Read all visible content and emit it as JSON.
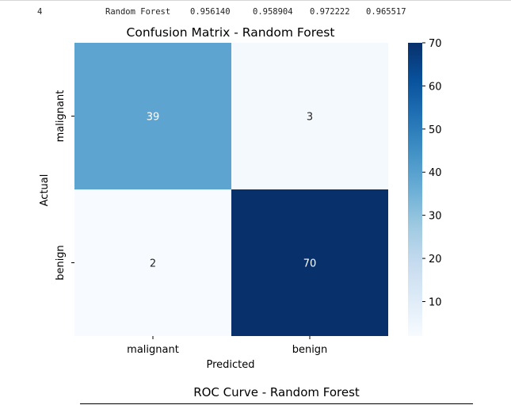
{
  "results_table_row": {
    "index": "4",
    "model": "Random Forest",
    "values": [
      "0.956140",
      "0.958904",
      "0.972222",
      "0.965517"
    ]
  },
  "chart_data": {
    "type": "heatmap",
    "title": "Confusion Matrix - Random Forest",
    "xlabel": "Predicted",
    "ylabel": "Actual",
    "x_categories": [
      "malignant",
      "benign"
    ],
    "y_categories": [
      "malignant",
      "benign"
    ],
    "values": [
      [
        39,
        3
      ],
      [
        2,
        70
      ]
    ],
    "colormap": "Blues",
    "color_range": [
      2,
      70
    ],
    "colorbar_ticks": [
      10,
      20,
      30,
      40,
      50,
      60,
      70
    ],
    "annotations": true
  },
  "next_chart": {
    "title": "ROC Curve - Random Forest"
  }
}
